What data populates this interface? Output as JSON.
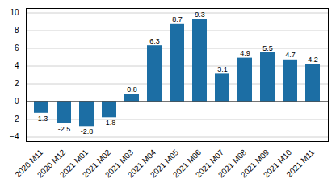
{
  "chart_data": {
    "type": "bar",
    "categories": [
      "2020 M11",
      "2020 M12",
      "2021 M01",
      "2021 M02",
      "2021 M03",
      "2021 M04",
      "2021 M05",
      "2021 M06",
      "2021 M07",
      "2021 M08",
      "2021 M09",
      "2021 M10",
      "2021 M11"
    ],
    "values": [
      -1.3,
      -2.5,
      -2.8,
      -1.8,
      0.8,
      6.3,
      8.7,
      9.3,
      3.1,
      4.9,
      5.5,
      4.7,
      4.2
    ],
    "color": "#1c6ea4",
    "ylim": [
      -4.5,
      10.5
    ],
    "yticks": [
      -4,
      -2,
      0,
      2,
      4,
      6,
      8,
      10
    ],
    "grid": true,
    "data_labels": true
  }
}
